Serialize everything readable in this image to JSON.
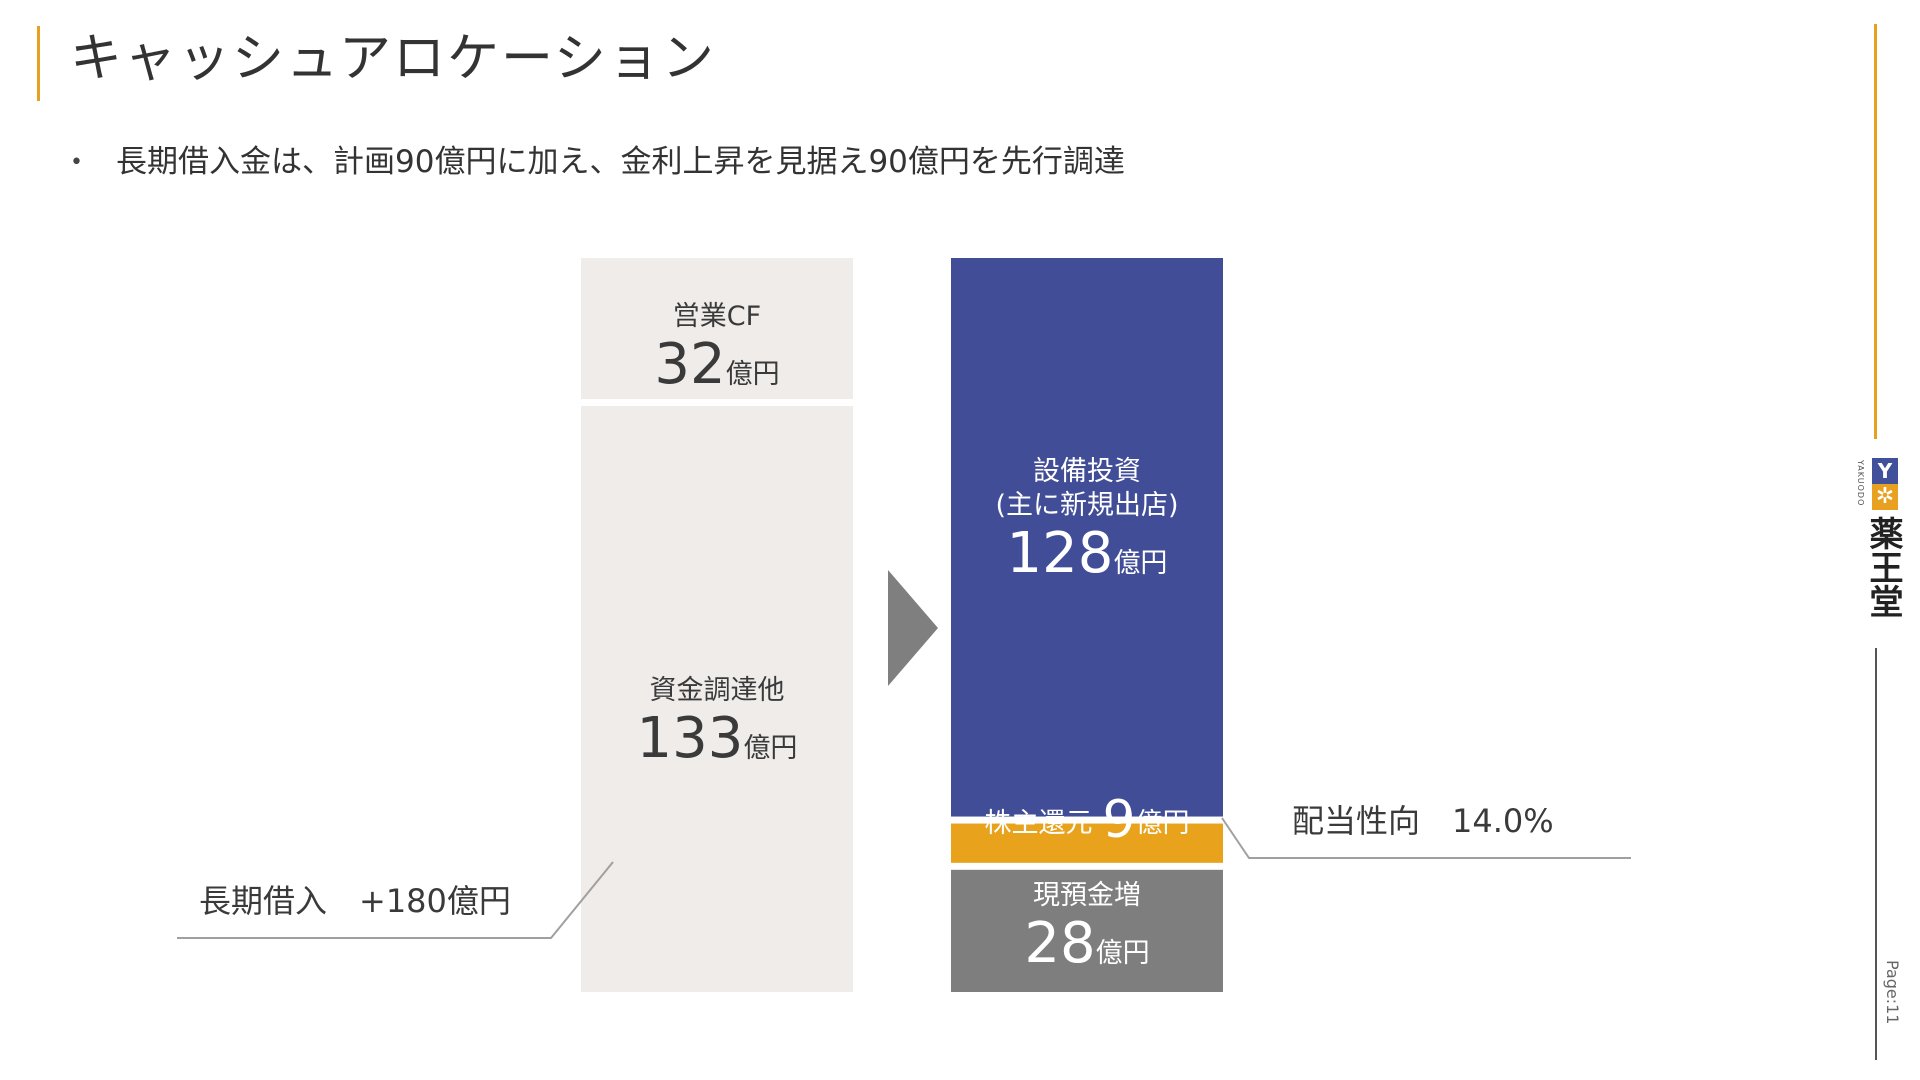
{
  "title": "キャッシュアロケーション",
  "bullet": {
    "marker": "•",
    "text": "長期借入金は、計画90億円に加え、金利上昇を見据え90億円を先行調達"
  },
  "chart_data": {
    "type": "bar",
    "subtype": "stacked-flow",
    "unit": "億円",
    "columns": [
      {
        "name": "sources",
        "segments": [
          {
            "label": "営業CF",
            "value": 32,
            "value_text": "32",
            "unit": "億円",
            "color": "#efecea"
          },
          {
            "label": "資金調達他",
            "value": 133,
            "value_text": "133",
            "unit": "億円",
            "color": "#efecea"
          }
        ]
      },
      {
        "name": "uses",
        "segments": [
          {
            "label": "設備投資",
            "label2": "(主に新規出店)",
            "value": 128,
            "value_text": "128",
            "unit": "億円",
            "color": "#414d96"
          },
          {
            "label": "株主還元",
            "value": 9,
            "value_text": "9",
            "unit": "億円",
            "color": "#e8a21c"
          },
          {
            "label": "現預金増",
            "value": 28,
            "value_text": "28",
            "unit": "億円",
            "color": "#7e7e7e"
          }
        ]
      }
    ],
    "annotations": [
      {
        "text": "長期借入　+180億円",
        "target": "資金調達他"
      },
      {
        "text": "配当性向　14.0%",
        "target": "株主還元"
      }
    ],
    "arrow_color": "#7f7f7f",
    "connector_color": "#a0a0a0"
  },
  "sidebar": {
    "logo_mark_y": "Y",
    "logo_mark_star": "✲",
    "logo_small": "YAKUODO",
    "logo_text": "薬王堂",
    "page": "Page:11",
    "accent_color": "#e8a020"
  }
}
